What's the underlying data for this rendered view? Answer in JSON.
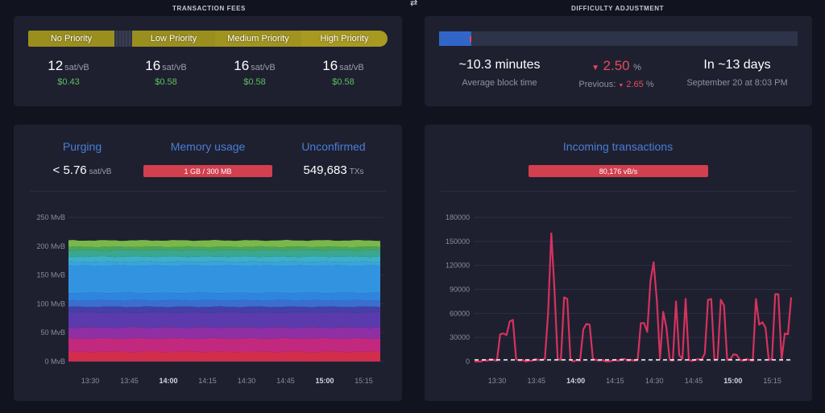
{
  "transaction_fees": {
    "title": "TRANSACTION FEES",
    "segments": [
      {
        "label": "No Priority",
        "color": "#9a8f1e"
      },
      {
        "label": "Low Priority",
        "color": "#9a8f1e"
      },
      {
        "label": "Medium Priority",
        "color": "#a0931f"
      },
      {
        "label": "High Priority",
        "color": "#a89920"
      }
    ],
    "columns": [
      {
        "rate": "12",
        "unit": "sat/vB",
        "usd": "$0.43"
      },
      {
        "rate": "16",
        "unit": "sat/vB",
        "usd": "$0.58"
      },
      {
        "rate": "16",
        "unit": "sat/vB",
        "usd": "$0.58"
      },
      {
        "rate": "16",
        "unit": "sat/vB",
        "usd": "$0.58"
      }
    ]
  },
  "difficulty": {
    "title": "DIFFICULTY ADJUSTMENT",
    "progress": 0.09,
    "block_time": "~10.3 minutes",
    "block_time_label": "Average block time",
    "change": "2.50",
    "change_unit": "%",
    "previous_label": "Previous:",
    "previous_value": "2.65",
    "previous_unit": "%",
    "eta": "In ~13 days",
    "eta_date": "September 20 at 8:03 PM"
  },
  "mempool": {
    "purging_label": "Purging",
    "purging_value": "< 5.76",
    "purging_unit": "sat/vB",
    "memory_label": "Memory usage",
    "memory_value": "1 GB / 300 MB",
    "unconfirmed_label": "Unconfirmed",
    "unconfirmed_value": "549,683",
    "unconfirmed_unit": "TXs"
  },
  "incoming": {
    "label": "Incoming transactions",
    "rate": "80,176 vB/s"
  },
  "chart_data": [
    {
      "type": "area",
      "title": "",
      "ylabel": "",
      "yunit": "MvB",
      "ylim": [
        0,
        250
      ],
      "yticks": [
        "0 MvB",
        "50 MvB",
        "100 MvB",
        "150 MvB",
        "200 MvB",
        "250 MvB"
      ],
      "xticks": [
        {
          "label": "13:30",
          "bold": false
        },
        {
          "label": "13:45",
          "bold": false
        },
        {
          "label": "14:00",
          "bold": true
        },
        {
          "label": "14:15",
          "bold": false
        },
        {
          "label": "14:30",
          "bold": false
        },
        {
          "label": "14:45",
          "bold": false
        },
        {
          "label": "15:00",
          "bold": true
        },
        {
          "label": "15:15",
          "bold": false
        }
      ],
      "stacked": true,
      "series": [
        {
          "color": "#d12e4e",
          "value": 17
        },
        {
          "color": "#c2297e",
          "value": 23
        },
        {
          "color": "#8e2fa3",
          "value": 19
        },
        {
          "color": "#5a3aac",
          "value": 26
        },
        {
          "color": "#4340a6",
          "value": 10
        },
        {
          "color": "#3a6fd0",
          "value": 11
        },
        {
          "color": "#2f84dd",
          "value": 13
        },
        {
          "color": "#3294e0",
          "value": 47
        },
        {
          "color": "#39a3dc",
          "value": 7
        },
        {
          "color": "#3cb0c6",
          "value": 9
        },
        {
          "color": "#3aa790",
          "value": 11
        },
        {
          "color": "#4aa55a",
          "value": 6
        },
        {
          "color": "#7ab84a",
          "value": 11
        }
      ],
      "grid": true
    },
    {
      "type": "line",
      "title": "",
      "ylabel": "",
      "ylim": [
        0,
        180000
      ],
      "yticks": [
        "0",
        "30000",
        "60000",
        "90000",
        "120000",
        "150000",
        "180000"
      ],
      "xticks": [
        {
          "label": "13:30",
          "bold": false
        },
        {
          "label": "13:45",
          "bold": false
        },
        {
          "label": "14:00",
          "bold": true
        },
        {
          "label": "14:15",
          "bold": false
        },
        {
          "label": "14:30",
          "bold": false
        },
        {
          "label": "14:45",
          "bold": false
        },
        {
          "label": "15:00",
          "bold": true
        },
        {
          "label": "15:15",
          "bold": false
        }
      ],
      "threshold": 2000,
      "series": [
        {
          "color": "#d6325e",
          "values": [
            0,
            0,
            0,
            2000,
            1000,
            3000,
            2000,
            1000,
            34000,
            35000,
            33000,
            50000,
            52000,
            3000,
            1000,
            2000,
            0,
            1000,
            1000,
            3000,
            2000,
            2000,
            3000,
            60000,
            160000,
            90000,
            3000,
            2000,
            80000,
            78000,
            2000,
            0,
            2000,
            1000,
            40000,
            47000,
            46000,
            3000,
            2000,
            1000,
            2000,
            0,
            0,
            1000,
            2000,
            1000,
            3000,
            3000,
            1000,
            2000,
            1000,
            2000,
            48000,
            48000,
            37000,
            100000,
            124000,
            76000,
            3000,
            62000,
            42000,
            2000,
            1000,
            75000,
            8000,
            3000,
            78000,
            2000,
            1000,
            2000,
            3000,
            2000,
            10000,
            77000,
            78000,
            2000,
            3000,
            77000,
            70000,
            2000,
            3000,
            9000,
            8000,
            2000,
            1000,
            3000,
            2000,
            1000,
            78000,
            46000,
            49000,
            42000,
            2000,
            3000,
            84000,
            84000,
            2000,
            35000,
            34000,
            80000
          ]
        }
      ],
      "grid": true
    }
  ]
}
